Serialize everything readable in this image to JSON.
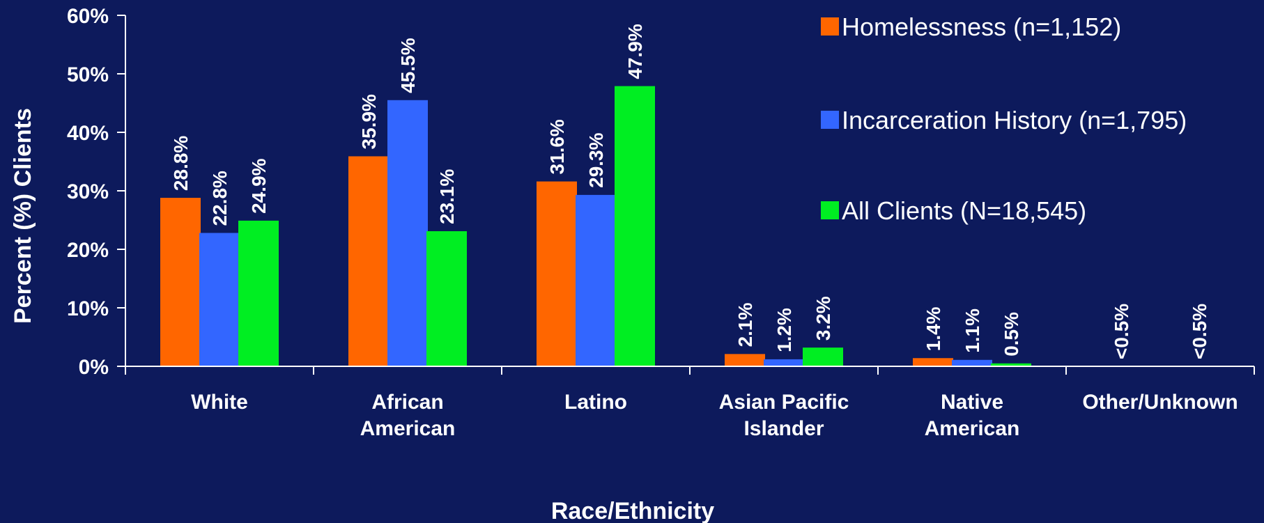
{
  "chart_data": {
    "type": "bar",
    "categories": [
      [
        "White"
      ],
      [
        "African",
        "American"
      ],
      [
        "Latino"
      ],
      [
        "Asian Pacific",
        "Islander"
      ],
      [
        "Native",
        "American"
      ],
      [
        "Other/Unknown"
      ]
    ],
    "series": [
      {
        "name": "Homelessness (n=1,152)",
        "color": "#ff6600",
        "values": [
          28.8,
          35.9,
          31.6,
          2.1,
          1.4,
          null
        ],
        "labels": [
          "28.8%",
          "35.9%",
          "31.6%",
          "2.1%",
          "1.4%",
          "<0.5%"
        ]
      },
      {
        "name": "Incarceration History (n=1,795)",
        "color": "#3366ff",
        "values": [
          22.8,
          45.5,
          29.3,
          1.2,
          1.1,
          null
        ],
        "labels": [
          "22.8%",
          "45.5%",
          "29.3%",
          "1.2%",
          "1.1%",
          ""
        ]
      },
      {
        "name": "All Clients (N=18,545)",
        "color": "#00ee22",
        "values": [
          24.9,
          23.1,
          47.9,
          3.2,
          0.5,
          null
        ],
        "labels": [
          "24.9%",
          "23.1%",
          "47.9%",
          "3.2%",
          "0.5%",
          "<0.5%"
        ]
      }
    ],
    "ylabel": "Percent (%) Clients",
    "xlabel": "Race/Ethnicity",
    "ylim": [
      0,
      60
    ],
    "yticks": [
      0,
      10,
      20,
      30,
      40,
      50,
      60
    ],
    "ytick_labels": [
      "0%",
      "10%",
      "20%",
      "30%",
      "40%",
      "50%",
      "60%"
    ],
    "legend_position": "top-right",
    "grid": false,
    "background_color": "#0d1a5c"
  }
}
